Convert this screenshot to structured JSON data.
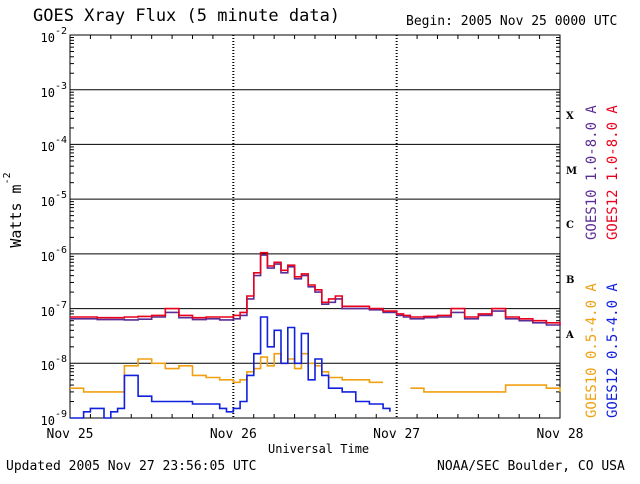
{
  "header": {
    "title": "GOES Xray Flux (5 minute data)",
    "begin": "Begin:  2005 Nov 25 0000 UTC"
  },
  "footer": {
    "updated": "Updated 2005 Nov 27 23:56:05 UTC",
    "credit": "NOAA/SEC Boulder, CO USA"
  },
  "chart_data": {
    "type": "line",
    "title": "GOES Xray Flux (5 minute data)",
    "xlabel": "Universal Time",
    "ylabel": "Watts m-2",
    "yscale": "log",
    "ylim": [
      1e-09,
      0.01
    ],
    "xlim": [
      0,
      72
    ],
    "x_unit": "hours since 2005 Nov 25 0000 UTC",
    "x_ticks": [
      {
        "x": 0,
        "label": "Nov 25"
      },
      {
        "x": 24,
        "label": "Nov 26"
      },
      {
        "x": 48,
        "label": "Nov 27"
      },
      {
        "x": 72,
        "label": "Nov 28"
      }
    ],
    "y_ticks": [
      {
        "base": "10",
        "exp": "-9",
        "value": 1e-09
      },
      {
        "base": "10",
        "exp": "-8",
        "value": 1e-08
      },
      {
        "base": "10",
        "exp": "-7",
        "value": 1e-07
      },
      {
        "base": "10",
        "exp": "-6",
        "value": 1e-06
      },
      {
        "base": "10",
        "exp": "-5",
        "value": 1e-05
      },
      {
        "base": "10",
        "exp": "-4",
        "value": 0.0001
      },
      {
        "base": "10",
        "exp": "-3",
        "value": 0.001
      },
      {
        "base": "10",
        "exp": "-2",
        "value": 0.01
      }
    ],
    "flare_classes": [
      {
        "label": "A",
        "value": 3.2e-08
      },
      {
        "label": "B",
        "value": 3.2e-07
      },
      {
        "label": "C",
        "value": 3.2e-06
      },
      {
        "label": "M",
        "value": 3.2e-05
      },
      {
        "label": "X",
        "value": 0.00032
      }
    ],
    "grid": "horizontal at decades",
    "legend": "right, rotated",
    "series": [
      {
        "name": "GOES10 1.0-8.0 A",
        "color": "#5a2d96",
        "x": [
          0,
          2,
          4,
          6,
          8,
          10,
          12,
          14,
          16,
          18,
          20,
          22,
          24,
          25,
          26,
          27,
          28,
          29,
          30,
          31,
          32,
          33,
          34,
          35,
          36,
          37,
          38,
          39,
          40,
          42,
          44,
          46,
          48,
          49,
          50,
          52,
          54,
          56,
          58,
          60,
          62,
          64,
          66,
          68,
          70,
          72
        ],
        "y": [
          6.5e-08,
          6.5e-08,
          6.3e-08,
          6.3e-08,
          6.2e-08,
          6.4e-08,
          7e-08,
          8.5e-08,
          6.8e-08,
          6.3e-08,
          6.5e-08,
          6.2e-08,
          6.5e-08,
          7.5e-08,
          1.5e-07,
          4e-07,
          9.5e-07,
          5.5e-07,
          6.5e-07,
          4.5e-07,
          5.8e-07,
          3.5e-07,
          4e-07,
          2.5e-07,
          2e-07,
          1.2e-07,
          1.3e-07,
          1.5e-07,
          1e-07,
          1e-07,
          9.5e-08,
          8.5e-08,
          7.5e-08,
          7e-08,
          6.5e-08,
          6.8e-08,
          7e-08,
          8.5e-08,
          6.5e-08,
          7.5e-08,
          9e-08,
          6.5e-08,
          6e-08,
          5.5e-08,
          5e-08,
          4.8e-08
        ]
      },
      {
        "name": "GOES12 1.0-8.0 A",
        "color": "#e8001c",
        "x": [
          0,
          2,
          4,
          6,
          8,
          10,
          12,
          14,
          16,
          18,
          20,
          22,
          24,
          25,
          26,
          27,
          28,
          29,
          30,
          31,
          32,
          33,
          34,
          35,
          36,
          37,
          38,
          39,
          40,
          42,
          44,
          46,
          48,
          49,
          50,
          52,
          54,
          56,
          58,
          60,
          62,
          64,
          66,
          68,
          70,
          72
        ],
        "y": [
          7e-08,
          7e-08,
          6.8e-08,
          6.8e-08,
          7e-08,
          7.2e-08,
          7.5e-08,
          1e-07,
          7.5e-08,
          6.8e-08,
          7e-08,
          7e-08,
          7.5e-08,
          8.5e-08,
          1.7e-07,
          4.5e-07,
          1.05e-06,
          6e-07,
          7e-07,
          5e-07,
          6.2e-07,
          3.8e-07,
          4.3e-07,
          2.7e-07,
          2.2e-07,
          1.3e-07,
          1.5e-07,
          1.7e-07,
          1.1e-07,
          1.1e-07,
          1e-07,
          9e-08,
          8e-08,
          7.5e-08,
          7e-08,
          7.2e-08,
          7.5e-08,
          1e-07,
          7e-08,
          8e-08,
          1e-07,
          7e-08,
          6.5e-08,
          6e-08,
          5.5e-08,
          5e-08
        ]
      },
      {
        "name": "GOES10 0.5-4.0 A",
        "color": "#f0a010",
        "x": [
          0,
          2,
          4,
          5,
          6,
          7,
          8,
          10,
          12,
          14,
          16,
          18,
          20,
          22,
          24,
          25,
          26,
          27,
          28,
          29,
          30,
          31,
          32,
          33,
          34,
          35,
          36,
          37,
          38,
          40,
          42,
          44,
          46,
          48,
          50,
          52,
          54,
          56,
          58,
          60,
          62,
          64,
          66,
          68,
          70,
          72
        ],
        "y": [
          3.5e-09,
          3e-09,
          3e-09,
          3e-09,
          3e-09,
          3e-09,
          9e-09,
          1.2e-08,
          1e-08,
          8e-09,
          9e-09,
          6e-09,
          5.5e-09,
          5e-09,
          4.5e-09,
          5e-09,
          7e-09,
          8e-09,
          1.3e-08,
          9e-09,
          1.5e-08,
          1e-08,
          1.2e-08,
          8e-09,
          1.5e-08,
          1e-08,
          9e-09,
          7e-09,
          5.5e-09,
          5e-09,
          5e-09,
          4.5e-09,
          4.5e-09,
          null,
          3.5e-09,
          3e-09,
          3e-09,
          3e-09,
          3e-09,
          3e-09,
          3e-09,
          4e-09,
          4e-09,
          4e-09,
          3.5e-09,
          3e-09
        ]
      },
      {
        "name": "GOES12 0.5-4.0 A",
        "color": "#1020dc",
        "x": [
          0,
          1,
          2,
          3,
          4,
          5,
          6,
          7,
          8,
          10,
          12,
          14,
          16,
          18,
          20,
          22,
          23,
          24,
          25,
          26,
          27,
          28,
          29,
          30,
          31,
          32,
          33,
          34,
          35,
          36,
          37,
          38,
          40,
          42,
          44,
          46,
          47,
          48,
          50,
          52,
          54,
          56,
          58,
          60,
          62,
          64,
          66,
          68,
          70,
          72
        ],
        "y": [
          1e-09,
          1e-09,
          1.3e-09,
          1.5e-09,
          1.5e-09,
          1e-09,
          1.3e-09,
          1.5e-09,
          6e-09,
          2.5e-09,
          2e-09,
          2e-09,
          2e-09,
          1.8e-09,
          1.8e-09,
          1.5e-09,
          1.3e-09,
          1.5e-09,
          2e-09,
          6e-09,
          1.5e-08,
          7e-08,
          2e-08,
          4e-08,
          1e-08,
          4.5e-08,
          1e-08,
          3.5e-08,
          5e-09,
          1.2e-08,
          6e-09,
          3.5e-09,
          3e-09,
          2e-09,
          1.8e-09,
          1.5e-09,
          1.3e-09,
          null,
          null,
          null,
          null,
          null,
          null,
          null,
          null,
          null,
          null,
          null,
          null,
          null
        ]
      }
    ]
  }
}
